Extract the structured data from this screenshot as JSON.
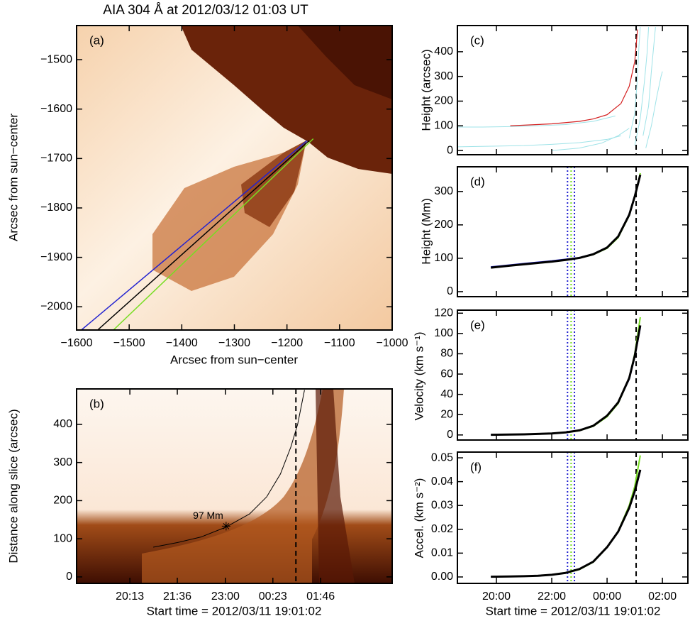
{
  "chart_data": [
    {
      "type": "image",
      "title": "AIA 304 Å at 2012/03/12 01:03 UT",
      "label": "(a)",
      "xlabel": "Arcsec from sun−center",
      "ylabel": "Arcsec from sun−center",
      "xlim": [
        -1600,
        -1000
      ],
      "ylim": [
        -2047,
        -1431
      ],
      "xticks": [
        {
          "value": -1600,
          "label": "−1600"
        },
        {
          "value": -1500,
          "label": "−1500"
        },
        {
          "value": -1400,
          "label": "−1400"
        },
        {
          "value": -1300,
          "label": "−1300"
        },
        {
          "value": -1200,
          "label": "−1200"
        },
        {
          "value": -1100,
          "label": "−1100"
        },
        {
          "value": -1000,
          "label": "−1000"
        }
      ],
      "yticks": [
        {
          "value": -2000,
          "label": "−2000"
        },
        {
          "value": -1900,
          "label": "−1900"
        },
        {
          "value": -1800,
          "label": "−1800"
        },
        {
          "value": -1700,
          "label": "−1700"
        },
        {
          "value": -1600,
          "label": "−1600"
        },
        {
          "value": -1500,
          "label": "−1500"
        }
      ],
      "show_xtick_labels": true,
      "series": [
        {
          "color": "#2222d0",
          "linewidth": 1.5,
          "x": [
            -1591,
            -1162
          ],
          "values": [
            -2047,
            -1664
          ]
        },
        {
          "color": "#000000",
          "linewidth": 1.5,
          "x": [
            -1560,
            -1158
          ],
          "values": [
            -2047,
            -1664
          ]
        },
        {
          "color": "#77dd22",
          "linewidth": 1.5,
          "x": [
            -1530,
            -1150
          ],
          "values": [
            -2047,
            -1660
          ]
        }
      ]
    },
    {
      "type": "image",
      "label": "(b)",
      "xlabel": "Start time = 2012/03/11 19:01:02",
      "ylabel": "Distance along slice (arcsec)",
      "xlim": [
        18.67,
        27.85
      ],
      "ylim": [
        -17,
        493
      ],
      "xticks": [
        {
          "value": 20.22,
          "label": "20:13"
        },
        {
          "value": 21.6,
          "label": "21:36"
        },
        {
          "value": 23.0,
          "label": "23:00"
        },
        {
          "value": 24.38,
          "label": "00:23"
        },
        {
          "value": 25.77,
          "label": "01:46"
        }
      ],
      "yticks": [
        0,
        100,
        200,
        300,
        400
      ],
      "show_xtick_labels": true,
      "series": [
        {
          "color": "#000000",
          "linewidth": 1,
          "x": [
            20.9,
            21.6,
            22.3,
            23.0,
            23.7,
            24.2,
            24.6,
            24.9,
            25.1,
            25.3
          ],
          "values": [
            78,
            90,
            105,
            130,
            165,
            210,
            270,
            340,
            400,
            490
          ]
        }
      ],
      "vlines": [
        {
          "value": 25.05,
          "color": "#000000",
          "style": "dashed"
        }
      ],
      "annotations": [
        {
          "text": "97 Mm",
          "x": 23.02,
          "y": 133
        }
      ]
    },
    {
      "type": "line",
      "label": "(c)",
      "ylabel": "Height (arcsec)",
      "xlim": [
        18.59,
        26.92
      ],
      "ylim": [
        -17,
        506
      ],
      "xticks": [
        20,
        22,
        24,
        26
      ],
      "yticks": [
        0,
        100,
        200,
        300,
        400
      ],
      "show_xtick_labels": false,
      "series": [
        {
          "color": "#9fe3e8",
          "linewidth": 1,
          "x": [
            18.6,
            19.5,
            20.5,
            21.5,
            22.5,
            23.5,
            24.3
          ],
          "values": [
            95,
            95,
            97,
            100,
            105,
            118,
            140
          ]
        },
        {
          "color": "#9fe3e8",
          "linewidth": 1,
          "x": [
            18.6,
            20,
            21,
            22,
            23,
            24,
            24.5
          ],
          "values": [
            15,
            18,
            20,
            25,
            32,
            45,
            60
          ]
        },
        {
          "color": "#9fe3e8",
          "linewidth": 1,
          "x": [
            22,
            23,
            23.8,
            24.4,
            24.8
          ],
          "values": [
            0,
            10,
            30,
            60,
            90
          ]
        },
        {
          "color": "#9fe3e8",
          "linewidth": 1,
          "x": [
            24.8,
            25.0,
            25.1,
            25.15,
            25.2
          ],
          "values": [
            50,
            150,
            300,
            420,
            500
          ]
        },
        {
          "color": "#9fe3e8",
          "linewidth": 1,
          "x": [
            25.0,
            25.2,
            25.35,
            25.45,
            25.5
          ],
          "values": [
            20,
            130,
            280,
            400,
            500
          ]
        },
        {
          "color": "#9fe3e8",
          "linewidth": 1,
          "x": [
            25.3,
            25.5,
            25.6,
            25.7,
            25.75
          ],
          "values": [
            60,
            180,
            320,
            440,
            500
          ]
        },
        {
          "color": "#9fe3e8",
          "linewidth": 1,
          "x": [
            25.4,
            25.6,
            25.8,
            25.95,
            26.0
          ],
          "values": [
            10,
            100,
            220,
            300,
            320
          ]
        },
        {
          "color": "#d42020",
          "linewidth": 1.2,
          "x": [
            20.5,
            22,
            23,
            23.5,
            24,
            24.5,
            24.8,
            25.0,
            25.1
          ],
          "values": [
            100,
            108,
            118,
            128,
            145,
            190,
            260,
            360,
            490
          ]
        }
      ],
      "vlines": [
        {
          "value": 25.05,
          "color": "#000000",
          "style": "dashed"
        }
      ]
    },
    {
      "type": "line",
      "label": "(d)",
      "ylabel": "Height (Mm)",
      "xlim": [
        18.59,
        26.92
      ],
      "ylim": [
        -15,
        374
      ],
      "xticks": [
        20,
        22,
        24,
        26
      ],
      "yticks": [
        0,
        100,
        200,
        300
      ],
      "show_xtick_labels": false,
      "x": [
        19.8,
        20.5,
        21.0,
        21.5,
        22.0,
        22.5,
        23.0,
        23.5,
        24.0,
        24.4,
        24.8,
        25.0,
        25.2
      ],
      "series": [
        {
          "color": "#77dd22",
          "linewidth": 2,
          "values": [
            73,
            79,
            83,
            87,
            91,
            96,
            101,
            111,
            130,
            162,
            228,
            285,
            355
          ]
        },
        {
          "color": "#2222d0",
          "linewidth": 2,
          "values": [
            74,
            80,
            84,
            88,
            92,
            97,
            102,
            113,
            133,
            166,
            232,
            287,
            348
          ]
        },
        {
          "color": "#000000",
          "linewidth": 3,
          "values": [
            72,
            78,
            82,
            86,
            90,
            95,
            101,
            112,
            132,
            165,
            230,
            285,
            350
          ]
        }
      ],
      "vlines": [
        {
          "value": 22.57,
          "color": "#2222d0",
          "style": "dotted"
        },
        {
          "value": 22.7,
          "color": "#77dd22",
          "style": "dotted"
        },
        {
          "value": 22.82,
          "color": "#2222d0",
          "style": "dotted"
        },
        {
          "value": 25.05,
          "color": "#000000",
          "style": "dashed"
        }
      ]
    },
    {
      "type": "line",
      "label": "(e)",
      "ylabel": "Velocity (km s⁻¹)",
      "xlim": [
        18.59,
        26.92
      ],
      "ylim": [
        -5,
        123
      ],
      "xticks": [
        20,
        22,
        24,
        26
      ],
      "yticks": [
        0,
        20,
        40,
        60,
        80,
        100,
        120
      ],
      "show_xtick_labels": false,
      "x": [
        19.8,
        20.5,
        21.0,
        21.5,
        22.0,
        22.5,
        23.0,
        23.5,
        24.0,
        24.4,
        24.8,
        25.0,
        25.2
      ],
      "series": [
        {
          "color": "#77dd22",
          "linewidth": 2,
          "values": [
            0.2,
            0.4,
            0.6,
            1.0,
            1.5,
            2.4,
            4.2,
            8.5,
            18,
            31,
            56,
            80,
            116
          ]
        },
        {
          "color": "#2222d0",
          "linewidth": 2,
          "values": [
            0.2,
            0.4,
            0.6,
            1.0,
            1.6,
            2.6,
            4.6,
            9.2,
            19,
            32,
            55,
            77,
            106
          ]
        },
        {
          "color": "#000000",
          "linewidth": 3,
          "values": [
            0.2,
            0.4,
            0.6,
            1.0,
            1.5,
            2.5,
            4.5,
            9,
            19,
            32,
            56,
            78,
            108
          ]
        }
      ],
      "vlines": [
        {
          "value": 22.57,
          "color": "#2222d0",
          "style": "dotted"
        },
        {
          "value": 22.7,
          "color": "#77dd22",
          "style": "dotted"
        },
        {
          "value": 22.82,
          "color": "#2222d0",
          "style": "dotted"
        },
        {
          "value": 25.05,
          "color": "#000000",
          "style": "dashed"
        }
      ]
    },
    {
      "type": "line",
      "label": "(f)",
      "ylabel": "Accel. (km s⁻²)",
      "xlabel": "Start time = 2012/03/11 19:01:02",
      "xlim": [
        18.59,
        26.92
      ],
      "ylim": [
        -0.0027,
        0.0524
      ],
      "xticks": [
        {
          "value": 20,
          "label": "20:00"
        },
        {
          "value": 22,
          "label": "22:00"
        },
        {
          "value": 24,
          "label": "00:00"
        },
        {
          "value": 26,
          "label": "02:00"
        }
      ],
      "yticks": [
        {
          "value": 0,
          "label": "0.00"
        },
        0.01,
        0.02,
        0.03,
        0.04,
        0.05
      ],
      "show_xtick_labels": true,
      "x": [
        19.8,
        20.5,
        21.0,
        21.5,
        22.0,
        22.5,
        23.0,
        23.5,
        24.0,
        24.4,
        24.8,
        25.0,
        25.2
      ],
      "series": [
        {
          "color": "#77dd22",
          "linewidth": 2,
          "values": [
            0.0001,
            0.0002,
            0.0003,
            0.0005,
            0.0009,
            0.0016,
            0.0031,
            0.0062,
            0.0124,
            0.0192,
            0.03,
            0.038,
            0.051
          ]
        },
        {
          "color": "#2222d0",
          "linewidth": 2,
          "values": [
            0.0001,
            0.0002,
            0.0003,
            0.0005,
            0.0009,
            0.0017,
            0.0033,
            0.0064,
            0.0125,
            0.019,
            0.029,
            0.0355,
            0.0445
          ]
        },
        {
          "color": "#000000",
          "linewidth": 3,
          "values": [
            0.0001,
            0.0002,
            0.0003,
            0.0005,
            0.0009,
            0.0017,
            0.0033,
            0.0064,
            0.0125,
            0.019,
            0.029,
            0.036,
            0.045
          ]
        }
      ],
      "vlines": [
        {
          "value": 22.57,
          "color": "#2222d0",
          "style": "dotted"
        },
        {
          "value": 22.7,
          "color": "#77dd22",
          "style": "dotted"
        },
        {
          "value": 22.82,
          "color": "#2222d0",
          "style": "dotted"
        },
        {
          "value": 25.05,
          "color": "#000000",
          "style": "dashed"
        }
      ]
    }
  ]
}
